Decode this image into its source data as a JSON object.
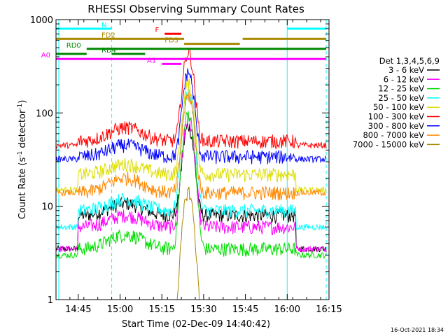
{
  "chart_data": {
    "type": "line",
    "title": "RHESSI Observing Summary Count Rates",
    "xlabel": "Start Time (02-Dec-09 14:40:42)",
    "ylabel_main": "Count Rate (s",
    "ylabel_sup1": "-1",
    "ylabel_mid": " detector",
    "ylabel_sup2": "-1",
    "ylabel_end": ")",
    "y_scale": "log",
    "ylim": [
      1,
      1000
    ],
    "xlim_minutes": [
      -3,
      95
    ],
    "x_tick_labels": [
      "14:45",
      "15:00",
      "15:15",
      "15:30",
      "15:45",
      "16:00",
      "16:15"
    ],
    "x_tick_minutes": [
      5,
      20,
      35,
      50,
      65,
      80,
      95
    ],
    "y_tick_labels": [
      "1",
      "10",
      "100",
      "1000"
    ],
    "y_tick_values": [
      1,
      10,
      100,
      1000
    ],
    "legend_title": "Det 1,3,4,5,6,9",
    "legend_placement": "right",
    "timestamp": "16-Oct-2021 18:34",
    "series": [
      {
        "name": "3 - 6 keV",
        "color": "#000000",
        "baseline": 8,
        "pre": 3.5,
        "peak": 65,
        "night_fill": 11
      },
      {
        "name": "6 - 12 keV",
        "color": "#ff00ff",
        "baseline": 6,
        "pre": 3.5,
        "peak": 80,
        "night_fill": 8
      },
      {
        "name": "12 - 25 keV",
        "color": "#00dd00",
        "baseline": 3.5,
        "pre": 3,
        "peak": 95,
        "night_fill": 6
      },
      {
        "name": "25 - 50 keV",
        "color": "#00ffff",
        "baseline": 9,
        "pre": 6,
        "peak": 160,
        "night_fill": 12
      },
      {
        "name": "50 - 100 keV",
        "color": "#dddd00",
        "baseline": 22,
        "pre": 15,
        "peak": 180,
        "night_fill": 25
      },
      {
        "name": "100 - 300 keV",
        "color": "#ff0000",
        "baseline": 50,
        "pre": 45,
        "peak": 400,
        "night_fill": 80
      },
      {
        "name": "300 - 800 keV",
        "color": "#0000ff",
        "baseline": 34,
        "pre": 32,
        "peak": 240,
        "night_fill": 45
      },
      {
        "name": "800 - 7000 keV",
        "color": "#ff8800",
        "baseline": 14,
        "pre": 14,
        "peak": 140,
        "night_fill": 25
      },
      {
        "name": "7000 - 15000 keV",
        "color": "#aa8800",
        "baseline": 0.5,
        "pre": 0.5,
        "peak": 14,
        "night_fill": 0.5
      }
    ],
    "flags": [
      {
        "label": "N",
        "color": "#00ffff",
        "level": 1,
        "spans": [
          [
            -3,
            17
          ],
          [
            80,
            94
          ]
        ]
      },
      {
        "label": "F",
        "color": "#ff0000",
        "level": 2,
        "spans": [
          [
            36,
            42
          ]
        ]
      },
      {
        "label": "FD2",
        "color": "#aa8800",
        "level": 3,
        "spans": [
          [
            -3,
            43
          ],
          [
            64,
            94
          ]
        ]
      },
      {
        "label": "FD3",
        "color": "#aa8800",
        "level": 4,
        "spans": [
          [
            43,
            63
          ]
        ]
      },
      {
        "label": "RD0",
        "color": "#008800",
        "level": 5,
        "spans": [
          [
            8,
            94
          ]
        ]
      },
      {
        "label": "RD4",
        "color": "#008800",
        "level": 6,
        "spans": [
          [
            -3,
            8
          ],
          [
            17,
            29
          ]
        ]
      },
      {
        "label": "A0",
        "color": "#ff00ff",
        "level": 7,
        "spans": [
          [
            -3,
            94
          ]
        ]
      },
      {
        "label": "A1",
        "color": "#ff00ff",
        "level": 8,
        "spans": [
          [
            35,
            42
          ]
        ]
      }
    ],
    "night_boundaries_minutes": [
      -2,
      17,
      80,
      94
    ]
  }
}
